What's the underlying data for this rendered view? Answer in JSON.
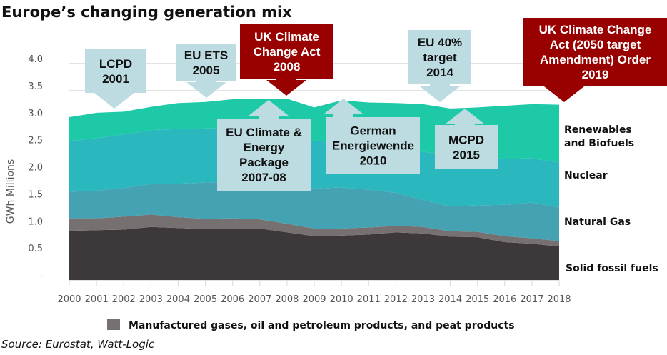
{
  "chart_data": {
    "type": "area",
    "stacked": true,
    "title": "Europe’s changing generation mix",
    "ylabel": "GWh Millions",
    "xlabel": "",
    "ylim": [
      0,
      4.0
    ],
    "yticks": [
      "-",
      "0.5",
      "1.0",
      "1.5",
      "2.0",
      "2.5",
      "3.0",
      "3.5",
      "4.0"
    ],
    "ytick_values": [
      0,
      0.5,
      1.0,
      1.5,
      2.0,
      2.5,
      3.0,
      3.5,
      4.0
    ],
    "grid": true,
    "categories": [
      "2000",
      "2001",
      "2002",
      "2003",
      "2004",
      "2005",
      "2006",
      "2007",
      "2008",
      "2009",
      "2010",
      "2011",
      "2012",
      "2013",
      "2014",
      "2015",
      "2016",
      "2017",
      "2018"
    ],
    "series": [
      {
        "name": "Solid fossil fuels",
        "color": "#3d3839",
        "values": [
          0.91,
          0.92,
          0.93,
          0.98,
          0.96,
          0.94,
          0.95,
          0.95,
          0.88,
          0.81,
          0.82,
          0.84,
          0.88,
          0.86,
          0.8,
          0.79,
          0.7,
          0.67,
          0.62
        ]
      },
      {
        "name": "Manufactured gases, oil and petroleum products, and peat products",
        "color": "#767071",
        "values": [
          0.23,
          0.22,
          0.24,
          0.23,
          0.2,
          0.19,
          0.19,
          0.17,
          0.16,
          0.14,
          0.13,
          0.13,
          0.12,
          0.12,
          0.1,
          0.1,
          0.11,
          0.1,
          0.1
        ]
      },
      {
        "name": "Natural Gas",
        "color": "#45a2b3",
        "values": [
          0.49,
          0.51,
          0.53,
          0.56,
          0.62,
          0.67,
          0.68,
          0.72,
          0.74,
          0.74,
          0.76,
          0.7,
          0.61,
          0.5,
          0.46,
          0.49,
          0.58,
          0.66,
          0.62
        ]
      },
      {
        "name": "Nuclear",
        "color": "#2ab8be",
        "values": [
          0.94,
          0.97,
          0.99,
          1.0,
          1.01,
          1.0,
          0.99,
          0.96,
          0.92,
          0.88,
          0.87,
          0.86,
          0.87,
          0.89,
          0.94,
          0.89,
          0.85,
          0.82,
          0.83
        ]
      },
      {
        "name": "Renewables and Biofuels",
        "color": "#1ec9a8",
        "values": [
          0.44,
          0.47,
          0.42,
          0.43,
          0.48,
          0.49,
          0.53,
          0.55,
          0.65,
          0.62,
          0.74,
          0.75,
          0.79,
          0.88,
          0.87,
          0.92,
          0.98,
          1.0,
          1.07
        ]
      }
    ],
    "series_labels": {
      "renewables_line1": "Renewables",
      "renewables_line2": "and Biofuels",
      "nuclear": "Nuclear",
      "gas": "Natural Gas",
      "solid": "Solid fossil fuels"
    },
    "legend": {
      "label": "Manufactured gases, oil and petroleum products, and peat products",
      "color": "#767071",
      "placement": "bottom"
    },
    "annotations": [
      {
        "lines": [
          "LCPD",
          "2001"
        ],
        "style": "light",
        "arrow": "down",
        "year": "2001"
      },
      {
        "lines": [
          "EU ETS",
          "2005"
        ],
        "style": "light",
        "arrow": "down",
        "year": "2005"
      },
      {
        "lines": [
          "UK Climate",
          "Change Act",
          "2008"
        ],
        "style": "red",
        "arrow": "down",
        "year": "2008"
      },
      {
        "lines": [
          "EU Climate &",
          "Energy",
          "Package",
          "2007-08"
        ],
        "style": "light",
        "arrow": "up",
        "year": "2007-08"
      },
      {
        "lines": [
          "German",
          "Energiewende",
          "2010"
        ],
        "style": "light",
        "arrow": "up",
        "year": "2010"
      },
      {
        "lines": [
          "EU 40%",
          "target",
          "2014"
        ],
        "style": "light",
        "arrow": "down",
        "year": "2014"
      },
      {
        "lines": [
          "MCPD",
          "2015"
        ],
        "style": "light",
        "arrow": "up",
        "year": "2015"
      },
      {
        "lines": [
          "UK Climate Change",
          "Act (2050 target",
          "Amendment) Order",
          "2019"
        ],
        "style": "red",
        "arrow": "down",
        "year": "2019"
      }
    ],
    "source": "Source: Eurostat, Watt-Logic"
  },
  "colors": {
    "light_box": "#bcdce2",
    "red_box": "#990000",
    "grid": "#e3e3e3"
  }
}
